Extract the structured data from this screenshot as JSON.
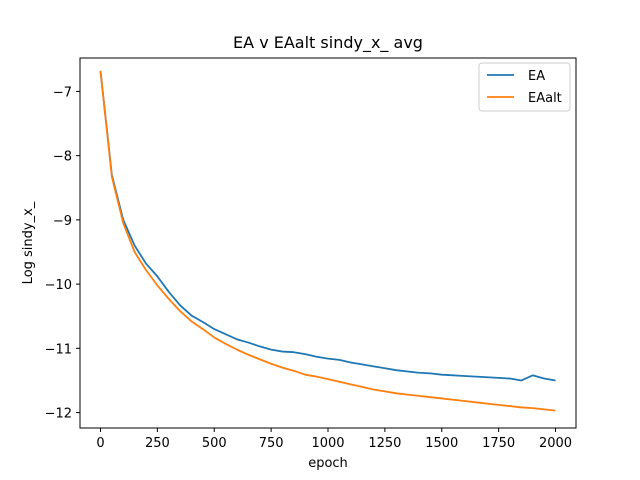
{
  "chart_data": {
    "type": "line",
    "title": "EA v EAalt sindy_x_ avg",
    "xlabel": "epoch",
    "ylabel": "Log sindy_x_",
    "xlim": [
      -90,
      2090
    ],
    "ylim": [
      -12.24,
      -6.48
    ],
    "xticks": [
      0,
      250,
      500,
      750,
      1000,
      1250,
      1500,
      1750,
      2000
    ],
    "yticks": [
      -7,
      -8,
      -9,
      -10,
      -11,
      -12
    ],
    "grid": false,
    "legend_position": "top-right",
    "series": [
      {
        "name": "EA",
        "color": "#1f77b4",
        "x": [
          0,
          50,
          100,
          150,
          200,
          250,
          300,
          350,
          400,
          450,
          500,
          550,
          600,
          650,
          700,
          750,
          800,
          850,
          900,
          950,
          1000,
          1050,
          1100,
          1150,
          1200,
          1250,
          1300,
          1350,
          1400,
          1450,
          1500,
          1550,
          1600,
          1650,
          1700,
          1750,
          1800,
          1850,
          1900,
          1950,
          2000
        ],
        "y": [
          -6.68,
          -8.3,
          -9.0,
          -9.4,
          -9.68,
          -9.88,
          -10.12,
          -10.33,
          -10.49,
          -10.59,
          -10.7,
          -10.78,
          -10.86,
          -10.91,
          -10.97,
          -11.02,
          -11.05,
          -11.06,
          -11.09,
          -11.13,
          -11.16,
          -11.18,
          -11.22,
          -11.25,
          -11.28,
          -11.31,
          -11.34,
          -11.36,
          -11.38,
          -11.39,
          -11.41,
          -11.42,
          -11.43,
          -11.44,
          -11.45,
          -11.46,
          -11.47,
          -11.5,
          -11.42,
          -11.47,
          -11.5
        ]
      },
      {
        "name": "EAalt",
        "color": "#ff7f0e",
        "x": [
          0,
          50,
          100,
          150,
          200,
          250,
          300,
          350,
          400,
          450,
          500,
          550,
          600,
          650,
          700,
          750,
          800,
          850,
          900,
          950,
          1000,
          1050,
          1100,
          1150,
          1200,
          1250,
          1300,
          1350,
          1400,
          1450,
          1500,
          1550,
          1600,
          1650,
          1700,
          1750,
          1800,
          1850,
          1900,
          1950,
          2000
        ],
        "y": [
          -6.68,
          -8.33,
          -9.05,
          -9.5,
          -9.78,
          -10.02,
          -10.23,
          -10.42,
          -10.58,
          -10.7,
          -10.83,
          -10.93,
          -11.02,
          -11.1,
          -11.17,
          -11.24,
          -11.3,
          -11.35,
          -11.41,
          -11.44,
          -11.48,
          -11.52,
          -11.56,
          -11.6,
          -11.64,
          -11.67,
          -11.7,
          -11.72,
          -11.74,
          -11.76,
          -11.78,
          -11.8,
          -11.82,
          -11.84,
          -11.86,
          -11.88,
          -11.9,
          -11.92,
          -11.93,
          -11.95,
          -11.97
        ]
      }
    ]
  }
}
